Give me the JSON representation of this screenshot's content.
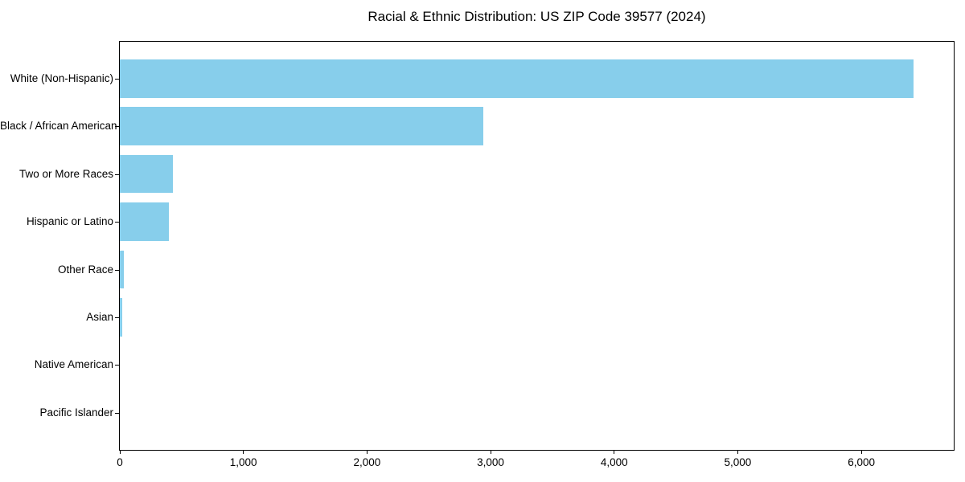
{
  "figure": {
    "background_color": "#ffffff",
    "text_color": "#000000"
  },
  "chart_data": {
    "type": "bar",
    "orientation": "horizontal",
    "title": "Racial & Ethnic Distribution: US ZIP Code 39577 (2024)",
    "categories": [
      "White (Non-Hispanic)",
      "Black / African American",
      "Two or More Races",
      "Hispanic or Latino",
      "Other Race",
      "Asian",
      "Native American",
      "Pacific Islander"
    ],
    "values": [
      6420,
      2940,
      430,
      400,
      30,
      20,
      0,
      0
    ],
    "xlabel": "",
    "ylabel": "",
    "xlim": [
      0,
      6741
    ],
    "xticks": [
      0,
      1000,
      2000,
      3000,
      4000,
      5000,
      6000
    ],
    "xtick_labels": [
      "0",
      "1,000",
      "2,000",
      "3,000",
      "4,000",
      "5,000",
      "6,000"
    ],
    "bar_color": "#87CEEB",
    "grid": false,
    "legend_position": "none"
  }
}
